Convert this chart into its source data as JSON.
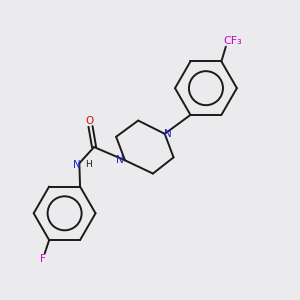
{
  "background_color": "#ebebed",
  "bond_color": "#1a1a1a",
  "nitrogen_color": "#2222cc",
  "oxygen_color": "#cc1111",
  "fluorine_color": "#cc00cc",
  "figsize": [
    3.0,
    3.0
  ],
  "dpi": 100,
  "lw": 1.4,
  "fs": 7.5,
  "fs_small": 6.5,
  "xlim": [
    0,
    10
  ],
  "ylim": [
    0,
    10
  ]
}
